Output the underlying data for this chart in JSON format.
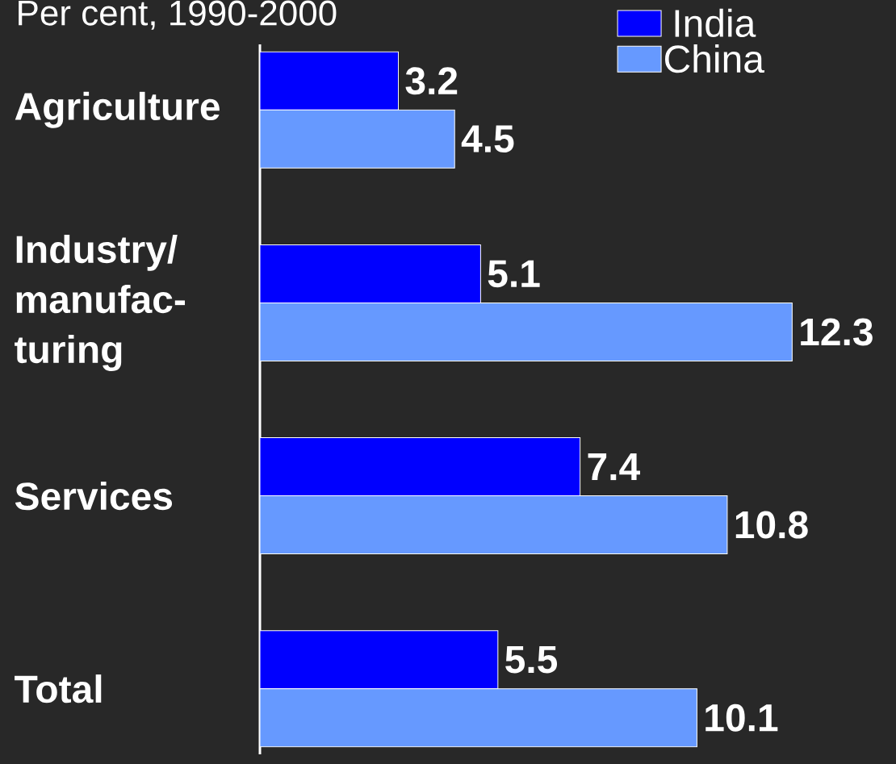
{
  "chart_data": {
    "type": "bar",
    "orientation": "horizontal",
    "subtitle": "Per cent, 1990-2000",
    "categories": [
      "Agriculture",
      "Industry/ manufac- turing",
      "Services",
      "Total"
    ],
    "series": [
      {
        "name": "India",
        "color": "#0000ff",
        "values": [
          3.2,
          5.1,
          7.4,
          5.5
        ]
      },
      {
        "name": "China",
        "color": "#6699ff",
        "values": [
          4.5,
          12.3,
          10.8,
          10.1
        ]
      }
    ],
    "data_labels": true,
    "legend": "top right",
    "tick_labels": "y",
    "grid": false
  }
}
